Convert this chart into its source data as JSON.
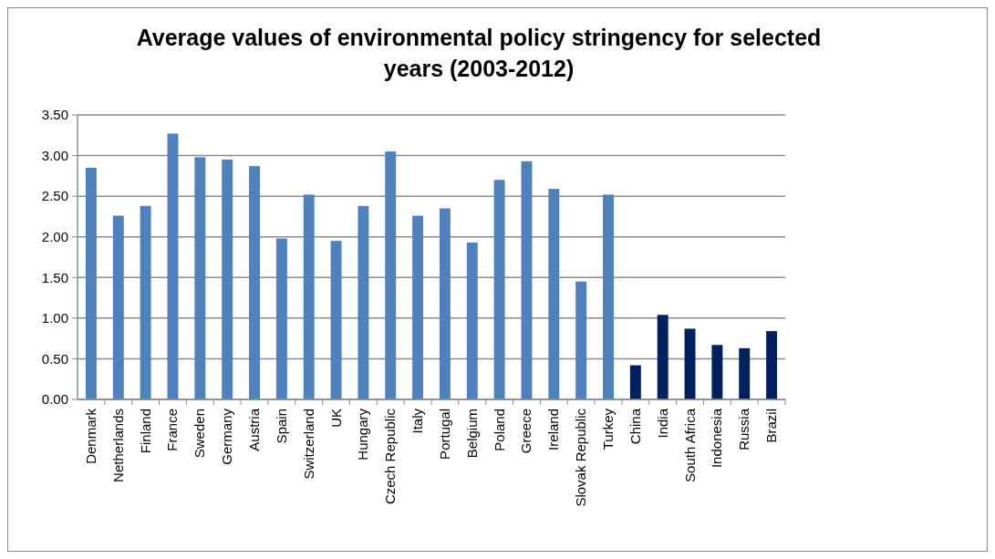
{
  "chart_data": {
    "type": "bar",
    "title": "Average values of environmental policy stringency for selected years (2003-2012)",
    "categories": [
      "Denmark",
      "Netherlands",
      "Finland",
      "France",
      "Sweden",
      "Germany",
      "Austria",
      "Spain",
      "Switzerland",
      "UK",
      "Hungary",
      "Czech Republic",
      "Italy",
      "Portugal",
      "Belgium",
      "Poland",
      "Greece",
      "Ireland",
      "Slovak Republic",
      "Turkey",
      "China",
      "India",
      "South Africa",
      "Indonesia",
      "Russia",
      "Brazil"
    ],
    "values": [
      2.85,
      2.26,
      2.38,
      3.27,
      2.98,
      2.95,
      2.87,
      1.98,
      2.52,
      1.95,
      2.38,
      3.05,
      2.26,
      2.35,
      1.93,
      2.7,
      2.93,
      2.59,
      1.45,
      2.52,
      0.42,
      1.04,
      0.87,
      0.67,
      0.63,
      0.84
    ],
    "colors": [
      "#4f81bd",
      "#4f81bd",
      "#4f81bd",
      "#4f81bd",
      "#4f81bd",
      "#4f81bd",
      "#4f81bd",
      "#4f81bd",
      "#4f81bd",
      "#4f81bd",
      "#4f81bd",
      "#4f81bd",
      "#4f81bd",
      "#4f81bd",
      "#4f81bd",
      "#4f81bd",
      "#4f81bd",
      "#4f81bd",
      "#4f81bd",
      "#4f81bd",
      "#002060",
      "#002060",
      "#002060",
      "#002060",
      "#002060",
      "#002060"
    ],
    "ylim": [
      0,
      3.5
    ],
    "yticks": [
      {
        "value": 0,
        "label": "0.00"
      },
      {
        "value": 0.5,
        "label": "0.50"
      },
      {
        "value": 1,
        "label": "1.00"
      },
      {
        "value": 1.5,
        "label": "1.50"
      },
      {
        "value": 2,
        "label": "2.00"
      },
      {
        "value": 2.5,
        "label": "2.50"
      },
      {
        "value": 3,
        "label": "3.00"
      },
      {
        "value": 3.5,
        "label": "3.50"
      }
    ],
    "grid": "y"
  }
}
